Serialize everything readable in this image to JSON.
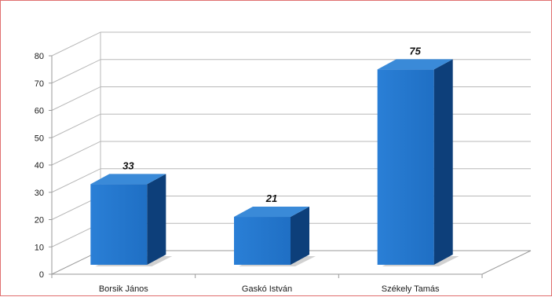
{
  "chart_data": {
    "type": "bar",
    "title": "",
    "xlabel": "",
    "ylabel": "",
    "categories": [
      "Borsik János",
      "Gaskó István",
      "Székely Tamás"
    ],
    "values": [
      33,
      21,
      75
    ],
    "data_labels": [
      "33",
      "21",
      "75"
    ],
    "ylim": [
      0,
      80
    ],
    "yticks": [
      0,
      10,
      20,
      30,
      40,
      50,
      60,
      70,
      80
    ],
    "grid": true,
    "legend": "none",
    "style": "3d-column",
    "colors": {
      "bar_front": "#1f6fc4",
      "bar_side": "#0d3f7a",
      "bar_top": "#3a8ad8",
      "grid": "#b8b8b8",
      "axis": "#9a9a9a",
      "wall_tick": "#c06060",
      "frame_border": "#e07070"
    }
  }
}
